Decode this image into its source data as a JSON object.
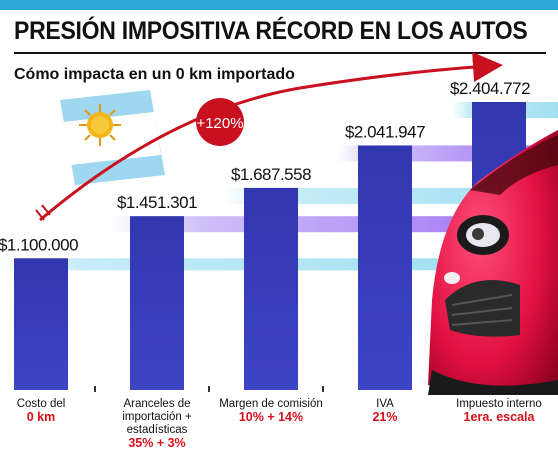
{
  "header": {
    "title": "PRESIÓN IMPOSITIVA RÉCORD EN LOS AUTOS",
    "subtitle": "Cómo impacta en un 0 km importado"
  },
  "colors": {
    "bar": "#3a3fb8",
    "band_blue": "#9fe0f2",
    "band_violet": "#8a5cf0",
    "accent_red": "#c8101e",
    "top_bar": "#2aa8d8"
  },
  "growth_badge": "+120%",
  "chart_data": {
    "type": "bar",
    "title": "PRESIÓN IMPOSITIVA RÉCORD EN LOS AUTOS",
    "subtitle": "Cómo impacta en un 0 km importado",
    "categories": [
      {
        "label": "Costo del",
        "highlight": "0 km"
      },
      {
        "label": "Aranceles de importación + estadísticas",
        "highlight": "35% + 3%"
      },
      {
        "label": "Margen de comisión",
        "highlight": "10% + 14%"
      },
      {
        "label": "IVA",
        "highlight": "21%"
      },
      {
        "label": "Impuesto interno",
        "highlight": "1era. escala"
      }
    ],
    "values": [
      1100000,
      1451301,
      1687558,
      2041947,
      2404772
    ],
    "value_labels": [
      "$1.100.000",
      "$1.451.301",
      "$1.687.558",
      "$2.041.947",
      "$2.404.772"
    ],
    "ylim": [
      0,
      2404772
    ],
    "grid": false
  }
}
